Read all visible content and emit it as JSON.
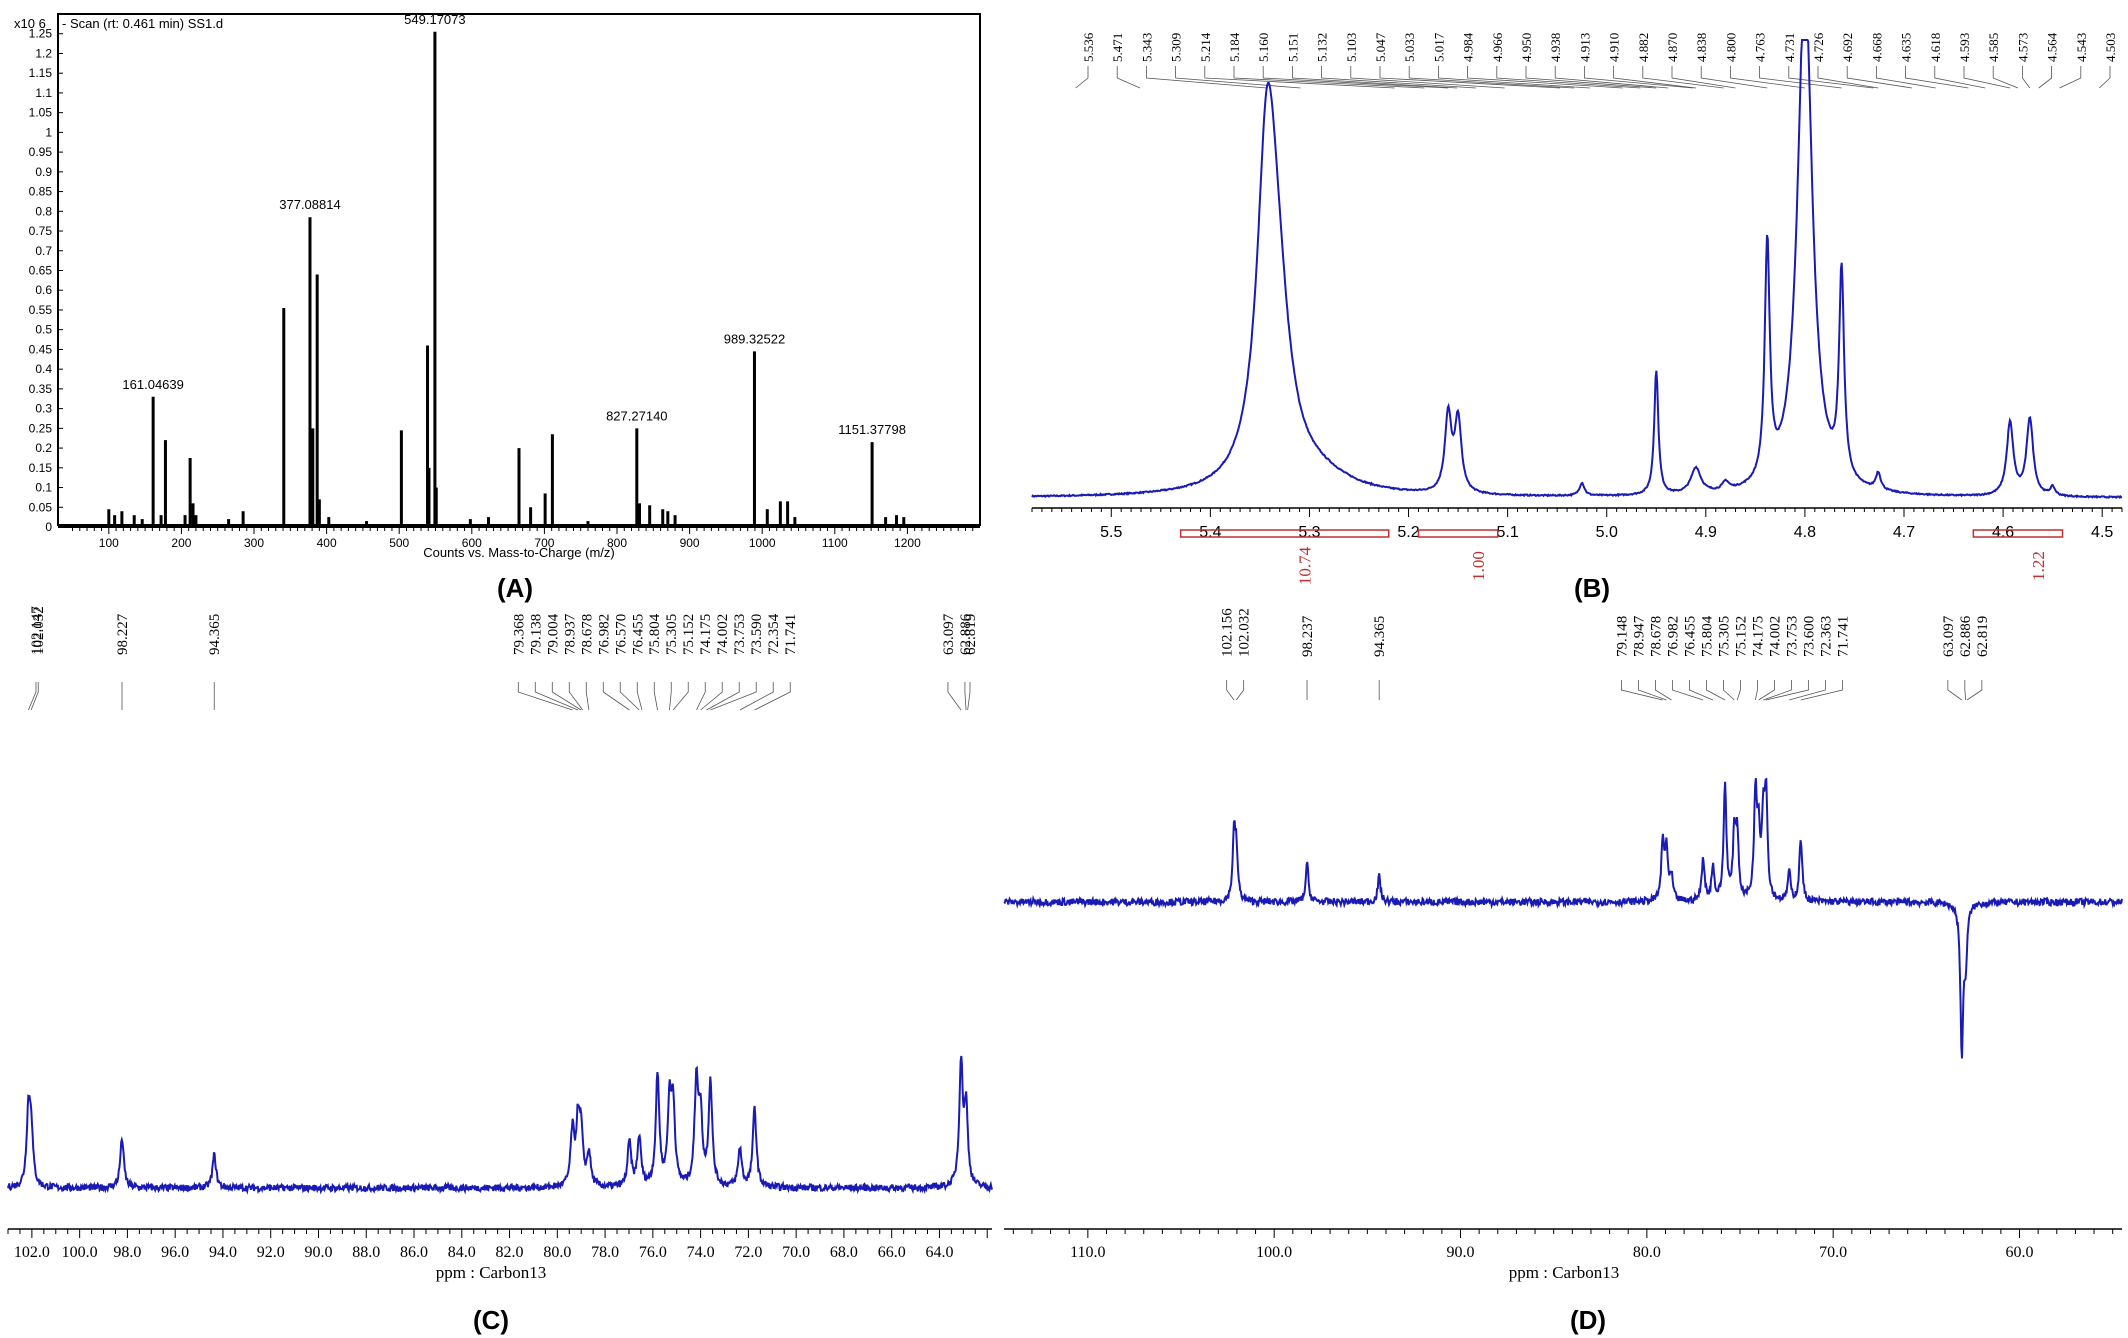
{
  "chart_data": [
    {
      "panel": "A",
      "type": "bar",
      "title": "- Scan (rt: 0.461 min) SS1.d",
      "xlabel": "Counts vs. Mass-to-Charge (m/z)",
      "y_multiplier": "x10 6",
      "xlim": [
        30,
        1300
      ],
      "ylim": [
        0,
        1.3
      ],
      "x_ticks": [
        100,
        200,
        300,
        400,
        500,
        600,
        700,
        800,
        900,
        1000,
        1100,
        1200
      ],
      "y_ticks": [
        0,
        0.05,
        0.1,
        0.15,
        0.2,
        0.25,
        0.3,
        0.35,
        0.4,
        0.45,
        0.5,
        0.55,
        0.6,
        0.65,
        0.7,
        0.75,
        0.8,
        0.85,
        0.9,
        0.95,
        1,
        1.05,
        1.1,
        1.15,
        1.2,
        1.25
      ],
      "peaks": [
        {
          "x": 100,
          "y": 0.045
        },
        {
          "x": 108,
          "y": 0.03
        },
        {
          "x": 118,
          "y": 0.04
        },
        {
          "x": 135,
          "y": 0.03
        },
        {
          "x": 146,
          "y": 0.02
        },
        {
          "x": 161.05,
          "y": 0.33
        },
        {
          "x": 172,
          "y": 0.03
        },
        {
          "x": 178,
          "y": 0.22
        },
        {
          "x": 205,
          "y": 0.03
        },
        {
          "x": 212,
          "y": 0.175
        },
        {
          "x": 216,
          "y": 0.06
        },
        {
          "x": 220,
          "y": 0.03
        },
        {
          "x": 265,
          "y": 0.02
        },
        {
          "x": 285,
          "y": 0.04
        },
        {
          "x": 341,
          "y": 0.555
        },
        {
          "x": 377.09,
          "y": 0.785
        },
        {
          "x": 379,
          "y": 0.1
        },
        {
          "x": 381,
          "y": 0.25
        },
        {
          "x": 387,
          "y": 0.64
        },
        {
          "x": 390,
          "y": 0.07
        },
        {
          "x": 403,
          "y": 0.025
        },
        {
          "x": 455,
          "y": 0.015
        },
        {
          "x": 503,
          "y": 0.245
        },
        {
          "x": 539,
          "y": 0.46
        },
        {
          "x": 541,
          "y": 0.15
        },
        {
          "x": 549.17,
          "y": 1.255
        },
        {
          "x": 551,
          "y": 0.1
        },
        {
          "x": 598,
          "y": 0.02
        },
        {
          "x": 623,
          "y": 0.025
        },
        {
          "x": 665,
          "y": 0.2
        },
        {
          "x": 681,
          "y": 0.05
        },
        {
          "x": 701,
          "y": 0.085
        },
        {
          "x": 711,
          "y": 0.235
        },
        {
          "x": 760,
          "y": 0.015
        },
        {
          "x": 827.27,
          "y": 0.25
        },
        {
          "x": 831,
          "y": 0.06
        },
        {
          "x": 845,
          "y": 0.055
        },
        {
          "x": 863,
          "y": 0.045
        },
        {
          "x": 870,
          "y": 0.04
        },
        {
          "x": 880,
          "y": 0.03
        },
        {
          "x": 989.33,
          "y": 0.445
        },
        {
          "x": 1007,
          "y": 0.045
        },
        {
          "x": 1025,
          "y": 0.065
        },
        {
          "x": 1035,
          "y": 0.065
        },
        {
          "x": 1045,
          "y": 0.025
        },
        {
          "x": 1151.38,
          "y": 0.215
        },
        {
          "x": 1170,
          "y": 0.025
        },
        {
          "x": 1185,
          "y": 0.03
        },
        {
          "x": 1195,
          "y": 0.025
        }
      ],
      "peak_labels": [
        {
          "x": 161.05,
          "y": 0.33,
          "text": "161.04639"
        },
        {
          "x": 377.09,
          "y": 0.785,
          "text": "377.08814"
        },
        {
          "x": 549.17,
          "y": 1.255,
          "text": "549.17073"
        },
        {
          "x": 827.27,
          "y": 0.25,
          "text": "827.27140"
        },
        {
          "x": 989.33,
          "y": 0.445,
          "text": "989.32522"
        },
        {
          "x": 1151.38,
          "y": 0.215,
          "text": "1151.37798"
        }
      ],
      "caption": "(A)"
    },
    {
      "panel": "B",
      "type": "line",
      "xlabel": "",
      "xlim": [
        5.58,
        4.48
      ],
      "x_ticks": [
        5.5,
        5.4,
        5.3,
        5.2,
        5.1,
        5.0,
        4.9,
        4.8,
        4.7,
        4.6,
        4.5
      ],
      "x_ticks_text": [
        "5.5",
        "5.4",
        "5.3",
        "5.2",
        "5.1",
        "5.0",
        "4.9",
        "4.8",
        "4.7",
        "4.6",
        "4.5"
      ],
      "peaks": [
        {
          "x": 5.343,
          "h": 0.69,
          "w": 0.012
        },
        {
          "x": 5.333,
          "h": 0.35,
          "w": 0.016
        },
        {
          "x": 5.29,
          "h": 0.035,
          "w": 0.04
        },
        {
          "x": 5.16,
          "h": 0.18,
          "w": 0.004
        },
        {
          "x": 5.15,
          "h": 0.17,
          "w": 0.004
        },
        {
          "x": 5.025,
          "h": 0.03,
          "w": 0.003
        },
        {
          "x": 4.95,
          "h": 0.29,
          "w": 0.0025
        },
        {
          "x": 4.91,
          "h": 0.06,
          "w": 0.006
        },
        {
          "x": 4.88,
          "h": 0.02,
          "w": 0.004
        },
        {
          "x": 4.838,
          "h": 0.55,
          "w": 0.003
        },
        {
          "x": 4.8,
          "h": 1.2,
          "w": 0.009
        },
        {
          "x": 4.763,
          "h": 0.48,
          "w": 0.003
        },
        {
          "x": 4.726,
          "h": 0.04,
          "w": 0.003
        },
        {
          "x": 4.593,
          "h": 0.17,
          "w": 0.004
        },
        {
          "x": 4.573,
          "h": 0.18,
          "w": 0.004
        },
        {
          "x": 4.55,
          "h": 0.02,
          "w": 0.003
        }
      ],
      "peak_list": [
        "5.536",
        "5.471",
        "5.343",
        "5.309",
        "5.214",
        "5.184",
        "5.160",
        "5.151",
        "5.132",
        "5.103",
        "5.047",
        "5.033",
        "5.017",
        "4.984",
        "4.966",
        "4.950",
        "4.938",
        "4.913",
        "4.910",
        "4.882",
        "4.870",
        "4.838",
        "4.800",
        "4.763",
        "4.731",
        "4.726",
        "4.692",
        "4.668",
        "4.635",
        "4.618",
        "4.593",
        "4.585",
        "4.573",
        "4.564",
        "4.543",
        "4.503"
      ],
      "integrals": [
        {
          "from": 5.43,
          "to": 5.22,
          "value": "10.74"
        },
        {
          "from": 5.19,
          "to": 5.11,
          "value": "1.00"
        },
        {
          "from": 4.63,
          "to": 4.54,
          "value": "1.22"
        }
      ],
      "caption": "(B)"
    },
    {
      "panel": "C",
      "type": "line",
      "xlabel": "ppm : Carbon13",
      "xlim": [
        103.0,
        61.8
      ],
      "x_ticks": [
        102.0,
        100.0,
        98.0,
        96.0,
        94.0,
        92.0,
        90.0,
        88.0,
        86.0,
        84.0,
        82.0,
        80.0,
        78.0,
        76.0,
        74.0,
        72.0,
        70.0,
        68.0,
        66.0,
        64.0
      ],
      "x_ticks_text": [
        "102.0",
        "100.0",
        "98.0",
        "96.0",
        "94.0",
        "92.0",
        "90.0",
        "88.0",
        "86.0",
        "84.0",
        "82.0",
        "80.0",
        "78.0",
        "76.0",
        "74.0",
        "72.0",
        "70.0",
        "68.0",
        "66.0",
        "64.0"
      ],
      "peaks": [
        {
          "x": 102.147,
          "h": 0.65
        },
        {
          "x": 102.032,
          "h": 0.5
        },
        {
          "x": 98.227,
          "h": 0.45
        },
        {
          "x": 94.365,
          "h": 0.3
        },
        {
          "x": 79.368,
          "h": 0.5
        },
        {
          "x": 79.138,
          "h": 0.55
        },
        {
          "x": 79.004,
          "h": 0.45
        },
        {
          "x": 78.678,
          "h": 0.3
        },
        {
          "x": 76.982,
          "h": 0.4
        },
        {
          "x": 76.57,
          "h": 0.45
        },
        {
          "x": 75.804,
          "h": 1.0
        },
        {
          "x": 75.305,
          "h": 0.72
        },
        {
          "x": 75.152,
          "h": 0.72
        },
        {
          "x": 74.175,
          "h": 0.95
        },
        {
          "x": 74.002,
          "h": 0.6
        },
        {
          "x": 73.59,
          "h": 0.95
        },
        {
          "x": 72.354,
          "h": 0.35
        },
        {
          "x": 71.741,
          "h": 0.72
        },
        {
          "x": 63.097,
          "h": 1.1
        },
        {
          "x": 62.886,
          "h": 0.7
        }
      ],
      "peak_list": [
        {
          "text": "102.147",
          "x": 102.147
        },
        {
          "text": "102.032",
          "x": 102.032
        },
        {
          "text": "98.227",
          "x": 98.227
        },
        {
          "text": "94.365",
          "x": 94.365
        },
        {
          "text": "79.368",
          "x": 79.368
        },
        {
          "text": "79.138",
          "x": 79.138
        },
        {
          "text": "79.004",
          "x": 79.004
        },
        {
          "text": "78.937",
          "x": 78.937
        },
        {
          "text": "78.678",
          "x": 78.678
        },
        {
          "text": "76.982",
          "x": 76.982
        },
        {
          "text": "76.570",
          "x": 76.57
        },
        {
          "text": "76.455",
          "x": 76.455
        },
        {
          "text": "75.804",
          "x": 75.804
        },
        {
          "text": "75.305",
          "x": 75.305
        },
        {
          "text": "75.152",
          "x": 75.152
        },
        {
          "text": "74.175",
          "x": 74.175
        },
        {
          "text": "74.002",
          "x": 74.002
        },
        {
          "text": "73.753",
          "x": 73.753
        },
        {
          "text": "73.590",
          "x": 73.59
        },
        {
          "text": "72.354",
          "x": 72.354
        },
        {
          "text": "71.741",
          "x": 71.741
        },
        {
          "text": "63.097",
          "x": 63.097
        },
        {
          "text": "62.886",
          "x": 62.886
        },
        {
          "text": "62.819",
          "x": 62.819
        }
      ],
      "caption": "(C)"
    },
    {
      "panel": "D",
      "type": "line",
      "xlabel": "ppm : Carbon13",
      "xlim": [
        114.5,
        54.5
      ],
      "x_ticks": [
        110.0,
        100.0,
        90.0,
        80.0,
        70.0,
        60.0
      ],
      "x_ticks_text": [
        "110.0",
        "100.0",
        "90.0",
        "80.0",
        "70.0",
        "60.0"
      ],
      "peaks": [
        {
          "x": 102.156,
          "h": 0.55
        },
        {
          "x": 102.032,
          "h": 0.4
        },
        {
          "x": 98.237,
          "h": 0.33
        },
        {
          "x": 94.365,
          "h": 0.22
        },
        {
          "x": 79.148,
          "h": 0.5
        },
        {
          "x": 78.947,
          "h": 0.45
        },
        {
          "x": 78.678,
          "h": 0.2
        },
        {
          "x": 76.982,
          "h": 0.38
        },
        {
          "x": 76.455,
          "h": 0.3
        },
        {
          "x": 75.804,
          "h": 1.0
        },
        {
          "x": 75.305,
          "h": 0.55
        },
        {
          "x": 75.152,
          "h": 0.55
        },
        {
          "x": 74.175,
          "h": 0.9
        },
        {
          "x": 74.002,
          "h": 0.55
        },
        {
          "x": 73.753,
          "h": 0.65
        },
        {
          "x": 73.6,
          "h": 0.88
        },
        {
          "x": 72.363,
          "h": 0.25
        },
        {
          "x": 71.741,
          "h": 0.55
        },
        {
          "x": 63.097,
          "h": -1.3
        },
        {
          "x": 62.886,
          "h": -0.45
        }
      ],
      "peak_list": [
        {
          "text": "102.156",
          "x": 102.156
        },
        {
          "text": "102.032",
          "x": 102.032
        },
        {
          "text": "98.237",
          "x": 98.237
        },
        {
          "text": "94.365",
          "x": 94.365
        },
        {
          "text": "79.148",
          "x": 79.148
        },
        {
          "text": "78.947",
          "x": 78.947
        },
        {
          "text": "78.678",
          "x": 78.678
        },
        {
          "text": "76.982",
          "x": 76.982
        },
        {
          "text": "76.455",
          "x": 76.455
        },
        {
          "text": "75.804",
          "x": 75.804
        },
        {
          "text": "75.305",
          "x": 75.305
        },
        {
          "text": "75.152",
          "x": 75.152
        },
        {
          "text": "74.175",
          "x": 74.175
        },
        {
          "text": "74.002",
          "x": 74.002
        },
        {
          "text": "73.753",
          "x": 73.753
        },
        {
          "text": "73.600",
          "x": 73.6
        },
        {
          "text": "72.363",
          "x": 72.363
        },
        {
          "text": "71.741",
          "x": 71.741
        },
        {
          "text": "63.097",
          "x": 63.097
        },
        {
          "text": "62.886",
          "x": 62.886
        },
        {
          "text": "62.819",
          "x": 62.819
        }
      ],
      "caption": "(D)"
    }
  ],
  "colors": {
    "nmr_trace": "#1a1ab4",
    "ms_bar": "#000000",
    "integral": "#c03030"
  }
}
